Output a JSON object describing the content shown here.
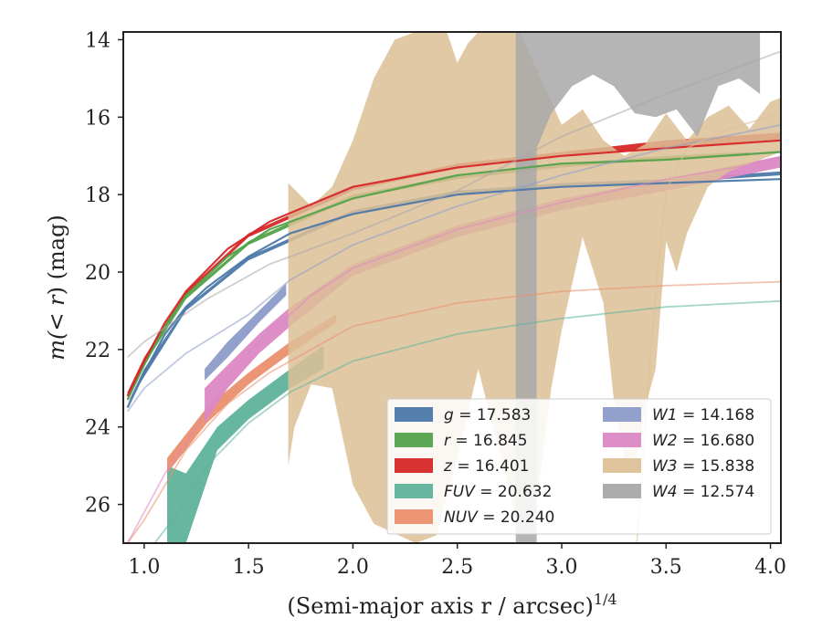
{
  "chart_data": {
    "type": "line",
    "xlabel": "(Semi-major axis r / arcsec)",
    "xlabel_sup": "1/4",
    "ylabel_prefix": "m(",
    "ylabel_math": "< r",
    "ylabel_suffix": ") (mag)",
    "xlim": [
      0.9,
      4.05
    ],
    "ylim": [
      27.0,
      13.8
    ],
    "y_inverted": true,
    "xticks": [
      1.0,
      1.5,
      2.0,
      2.5,
      3.0,
      3.5,
      4.0
    ],
    "xtick_labels": [
      "1.0",
      "1.5",
      "2.0",
      "2.5",
      "3.0",
      "3.5",
      "4.0"
    ],
    "yticks": [
      14,
      16,
      18,
      20,
      22,
      24,
      26
    ],
    "ytick_labels": [
      "14",
      "16",
      "18",
      "20",
      "22",
      "24",
      "26"
    ],
    "grid": false,
    "legend_position": "lower-right",
    "legend": [
      {
        "band": "g",
        "value": "17.583",
        "color": "#4c78a8"
      },
      {
        "band": "r",
        "value": "16.845",
        "color": "#54a24b"
      },
      {
        "band": "z",
        "value": "16.401",
        "color": "#d62728"
      },
      {
        "band": "FUV",
        "value": "20.632",
        "color": "#5fb29a"
      },
      {
        "band": "NUV",
        "value": "20.240",
        "color": "#ea8f6e"
      },
      {
        "band": "W1",
        "value": "14.168",
        "color": "#8c9cc8"
      },
      {
        "band": "W2",
        "value": "16.680",
        "color": "#dc88c4"
      },
      {
        "band": "W3",
        "value": "15.838",
        "color": "#ddc097"
      },
      {
        "band": "W4",
        "value": "12.574",
        "color": "#a8a8a8"
      }
    ],
    "series": [
      {
        "name": "g",
        "color": "#4c78a8",
        "model": [
          [
            0.92,
            23.5
          ],
          [
            1.0,
            22.6
          ],
          [
            1.1,
            21.6
          ],
          [
            1.2,
            20.9
          ],
          [
            1.3,
            20.4
          ],
          [
            1.5,
            19.6
          ],
          [
            1.7,
            19.0
          ],
          [
            2.0,
            18.5
          ],
          [
            2.5,
            18.0
          ],
          [
            3.0,
            17.8
          ],
          [
            3.5,
            17.7
          ],
          [
            4.05,
            17.6
          ]
        ],
        "band_lower": [
          [
            0.92,
            23.4
          ],
          [
            1.0,
            22.7
          ],
          [
            1.2,
            21.0
          ],
          [
            1.5,
            19.7
          ],
          [
            2.0,
            18.5
          ],
          [
            2.5,
            18.0
          ],
          [
            3.0,
            17.8
          ],
          [
            3.5,
            17.7
          ],
          [
            4.05,
            17.5
          ]
        ],
        "band_upper": [
          [
            0.92,
            23.4
          ],
          [
            1.0,
            22.5
          ],
          [
            1.2,
            20.9
          ],
          [
            1.5,
            19.6
          ],
          [
            2.0,
            18.4
          ],
          [
            2.5,
            17.9
          ],
          [
            3.0,
            17.7
          ],
          [
            3.5,
            17.6
          ],
          [
            4.05,
            17.4
          ]
        ]
      },
      {
        "name": "r",
        "color": "#54a24b",
        "model": [
          [
            0.92,
            23.3
          ],
          [
            1.0,
            22.4
          ],
          [
            1.1,
            21.4
          ],
          [
            1.2,
            20.6
          ],
          [
            1.4,
            19.6
          ],
          [
            1.6,
            18.9
          ],
          [
            2.0,
            18.1
          ],
          [
            2.5,
            17.5
          ],
          [
            3.0,
            17.2
          ],
          [
            3.5,
            17.1
          ],
          [
            4.05,
            16.9
          ]
        ],
        "band_lower": [
          [
            0.92,
            23.3
          ],
          [
            1.0,
            22.4
          ],
          [
            1.2,
            20.7
          ],
          [
            1.5,
            19.3
          ],
          [
            2.0,
            18.1
          ],
          [
            2.5,
            17.6
          ],
          [
            3.0,
            17.3
          ],
          [
            3.5,
            17.1
          ],
          [
            3.9,
            17.0
          ]
        ],
        "band_upper": [
          [
            0.92,
            23.2
          ],
          [
            1.0,
            22.3
          ],
          [
            1.2,
            20.6
          ],
          [
            1.5,
            19.2
          ],
          [
            2.0,
            18.0
          ],
          [
            2.5,
            17.5
          ],
          [
            3.0,
            17.2
          ],
          [
            3.5,
            17.0
          ],
          [
            3.9,
            16.9
          ]
        ]
      },
      {
        "name": "z",
        "color": "#d62728",
        "model": [
          [
            0.92,
            23.2
          ],
          [
            1.0,
            22.3
          ],
          [
            1.1,
            21.3
          ],
          [
            1.2,
            20.5
          ],
          [
            1.4,
            19.4
          ],
          [
            1.6,
            18.7
          ],
          [
            2.0,
            17.8
          ],
          [
            2.5,
            17.3
          ],
          [
            3.0,
            17.0
          ],
          [
            3.5,
            16.8
          ],
          [
            4.05,
            16.6
          ]
        ],
        "band_lower": [
          [
            0.92,
            23.2
          ],
          [
            1.0,
            22.3
          ],
          [
            1.2,
            20.6
          ],
          [
            1.5,
            19.1
          ],
          [
            2.0,
            17.9
          ],
          [
            2.5,
            17.3
          ],
          [
            3.0,
            17.0
          ],
          [
            3.5,
            16.8
          ],
          [
            4.05,
            16.6
          ]
        ],
        "band_upper": [
          [
            0.92,
            23.1
          ],
          [
            1.0,
            22.2
          ],
          [
            1.2,
            20.5
          ],
          [
            1.5,
            19.0
          ],
          [
            2.0,
            17.8
          ],
          [
            2.5,
            17.2
          ],
          [
            3.0,
            16.9
          ],
          [
            3.5,
            16.6
          ],
          [
            4.05,
            16.4
          ]
        ]
      },
      {
        "name": "FUV",
        "color": "#5fb29a",
        "model": [
          [
            1.05,
            27.0
          ],
          [
            1.15,
            26.3
          ],
          [
            1.3,
            25.0
          ],
          [
            1.5,
            23.9
          ],
          [
            1.7,
            23.1
          ],
          [
            2.0,
            22.3
          ],
          [
            2.5,
            21.6
          ],
          [
            3.0,
            21.2
          ],
          [
            3.5,
            20.9
          ],
          [
            4.05,
            20.75
          ]
        ],
        "band_lower": [
          [
            1.11,
            27.0
          ],
          [
            1.2,
            27.0
          ],
          [
            1.35,
            24.6
          ],
          [
            1.5,
            23.8
          ],
          [
            1.7,
            23.0
          ],
          [
            1.86,
            22.5
          ]
        ],
        "band_upper": [
          [
            1.11,
            25.0
          ],
          [
            1.2,
            25.2
          ],
          [
            1.35,
            24.0
          ],
          [
            1.5,
            23.3
          ],
          [
            1.7,
            22.5
          ],
          [
            1.86,
            21.9
          ]
        ]
      },
      {
        "name": "NUV",
        "color": "#ea8f6e",
        "model": [
          [
            0.92,
            27.0
          ],
          [
            1.0,
            26.4
          ],
          [
            1.2,
            24.6
          ],
          [
            1.4,
            23.4
          ],
          [
            1.6,
            22.6
          ],
          [
            2.0,
            21.4
          ],
          [
            2.5,
            20.8
          ],
          [
            3.0,
            20.5
          ],
          [
            3.5,
            20.35
          ],
          [
            4.05,
            20.25
          ]
        ],
        "band_lower": [
          [
            1.11,
            25.2
          ],
          [
            1.3,
            23.9
          ],
          [
            1.5,
            22.9
          ],
          [
            1.7,
            22.1
          ],
          [
            1.92,
            21.3
          ]
        ],
        "band_upper": [
          [
            1.11,
            24.8
          ],
          [
            1.3,
            23.5
          ],
          [
            1.5,
            22.6
          ],
          [
            1.7,
            21.8
          ],
          [
            1.92,
            21.1
          ]
        ]
      },
      {
        "name": "W1",
        "color": "#8c9cc8",
        "model": [
          [
            0.92,
            23.6
          ],
          [
            1.0,
            23.0
          ],
          [
            1.2,
            22.1
          ],
          [
            1.5,
            21.1
          ],
          [
            1.7,
            20.2
          ],
          [
            2.0,
            19.3
          ],
          [
            2.5,
            18.3
          ],
          [
            3.0,
            17.5
          ],
          [
            3.5,
            16.8
          ],
          [
            4.05,
            16.2
          ]
        ],
        "band_lower": [
          [
            1.29,
            22.8
          ],
          [
            1.4,
            22.2
          ],
          [
            1.55,
            21.3
          ],
          [
            1.68,
            20.6
          ]
        ],
        "band_upper": [
          [
            1.29,
            22.5
          ],
          [
            1.4,
            21.8
          ],
          [
            1.55,
            21.0
          ],
          [
            1.68,
            20.3
          ]
        ]
      },
      {
        "name": "W2",
        "color": "#dc88c4",
        "model": [
          [
            0.92,
            27.0
          ],
          [
            1.1,
            25.2
          ],
          [
            1.3,
            23.6
          ],
          [
            1.5,
            22.1
          ],
          [
            1.8,
            20.6
          ],
          [
            2.0,
            19.9
          ],
          [
            2.5,
            18.9
          ],
          [
            3.0,
            18.2
          ],
          [
            3.5,
            17.6
          ],
          [
            4.05,
            17.1
          ]
        ],
        "band_lower": [
          [
            1.29,
            23.9
          ],
          [
            1.4,
            23.0
          ],
          [
            1.55,
            22.1
          ],
          [
            1.7,
            21.4
          ],
          [
            2.0,
            20.1
          ],
          [
            2.5,
            19.1
          ],
          [
            3.0,
            18.4
          ],
          [
            3.5,
            17.9
          ],
          [
            4.05,
            17.3
          ]
        ],
        "band_upper": [
          [
            1.29,
            23.0
          ],
          [
            1.4,
            22.4
          ],
          [
            1.55,
            21.6
          ],
          [
            1.7,
            20.9
          ],
          [
            2.0,
            19.8
          ],
          [
            2.5,
            18.8
          ],
          [
            3.0,
            18.1
          ],
          [
            3.5,
            17.6
          ],
          [
            4.05,
            17.0
          ]
        ]
      },
      {
        "name": "W3",
        "color": "#ddc097",
        "model": [
          [
            3.36,
            27.0
          ],
          [
            3.4,
            24.0
          ],
          [
            3.45,
            20.5
          ],
          [
            3.5,
            17.9
          ],
          [
            3.6,
            16.8
          ],
          [
            3.8,
            16.3
          ],
          [
            4.05,
            15.9
          ]
        ],
        "band_upper": [
          [
            1.69,
            17.7
          ],
          [
            1.8,
            18.3
          ],
          [
            1.9,
            17.8
          ],
          [
            2.0,
            16.6
          ],
          [
            2.1,
            15.0
          ],
          [
            2.2,
            14.0
          ],
          [
            2.3,
            13.8
          ],
          [
            2.45,
            13.8
          ],
          [
            2.5,
            14.6
          ],
          [
            2.55,
            14.1
          ],
          [
            2.6,
            13.8
          ],
          [
            2.8,
            13.8
          ],
          [
            2.9,
            15.0
          ],
          [
            3.0,
            16.2
          ],
          [
            3.1,
            15.8
          ],
          [
            3.2,
            16.6
          ],
          [
            3.3,
            17.0
          ],
          [
            3.4,
            16.7
          ],
          [
            3.5,
            15.9
          ],
          [
            3.6,
            16.6
          ],
          [
            3.7,
            16.0
          ],
          [
            3.8,
            15.7
          ],
          [
            3.9,
            16.3
          ],
          [
            4.0,
            15.6
          ],
          [
            4.05,
            15.5
          ]
        ],
        "band_lower": [
          [
            4.05,
            16.9
          ],
          [
            4.0,
            17.0
          ],
          [
            3.9,
            17.2
          ],
          [
            3.8,
            17.4
          ],
          [
            3.7,
            17.8
          ],
          [
            3.6,
            19.0
          ],
          [
            3.55,
            20.0
          ],
          [
            3.5,
            19.2
          ],
          [
            3.45,
            22.5
          ],
          [
            3.4,
            23.5
          ],
          [
            3.35,
            25.0
          ],
          [
            3.3,
            24.8
          ],
          [
            3.25,
            23.3
          ],
          [
            3.2,
            20.8
          ],
          [
            3.1,
            19.1
          ],
          [
            3.0,
            21.5
          ],
          [
            2.95,
            23.0
          ],
          [
            2.9,
            25.2
          ],
          [
            2.85,
            26.4
          ],
          [
            2.8,
            26.8
          ],
          [
            2.7,
            24.6
          ],
          [
            2.6,
            22.5
          ],
          [
            2.5,
            24.8
          ],
          [
            2.4,
            26.8
          ],
          [
            2.3,
            27.0
          ],
          [
            2.1,
            26.5
          ],
          [
            2.0,
            25.5
          ],
          [
            1.9,
            23.0
          ],
          [
            1.8,
            22.9
          ],
          [
            1.72,
            24.0
          ],
          [
            1.69,
            25.0
          ]
        ]
      },
      {
        "name": "W4",
        "color": "#a8a8a8",
        "model": [
          [
            0.92,
            22.2
          ],
          [
            1.0,
            21.8
          ],
          [
            1.3,
            20.7
          ],
          [
            1.6,
            19.8
          ],
          [
            2.0,
            19.0
          ],
          [
            2.5,
            17.9
          ],
          [
            3.0,
            16.5
          ],
          [
            3.5,
            15.4
          ],
          [
            4.05,
            14.3
          ]
        ],
        "band_upper": [
          [
            2.78,
            13.8
          ],
          [
            3.0,
            13.8
          ],
          [
            3.2,
            13.8
          ],
          [
            3.5,
            13.8
          ],
          [
            3.8,
            13.8
          ],
          [
            3.95,
            13.8
          ]
        ],
        "band_lower": [
          [
            3.95,
            15.4
          ],
          [
            3.85,
            15.0
          ],
          [
            3.75,
            15.2
          ],
          [
            3.65,
            16.5
          ],
          [
            3.55,
            15.8
          ],
          [
            3.45,
            16.0
          ],
          [
            3.35,
            15.9
          ],
          [
            3.25,
            15.2
          ],
          [
            3.15,
            14.9
          ],
          [
            3.05,
            15.2
          ],
          [
            2.95,
            15.9
          ],
          [
            2.88,
            16.8
          ],
          [
            2.88,
            27.0
          ],
          [
            2.78,
            27.0
          ]
        ]
      }
    ]
  }
}
